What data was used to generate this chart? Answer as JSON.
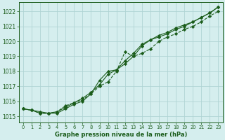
{
  "title": "Graphe pression niveau de la mer (hPa)",
  "xlim": [
    -0.5,
    23.5
  ],
  "ylim": [
    1014.6,
    1022.6
  ],
  "yticks": [
    1015,
    1016,
    1017,
    1018,
    1019,
    1020,
    1021,
    1022
  ],
  "xticks": [
    0,
    1,
    2,
    3,
    4,
    5,
    6,
    7,
    8,
    9,
    10,
    11,
    12,
    13,
    14,
    15,
    16,
    17,
    18,
    19,
    20,
    21,
    22,
    23
  ],
  "bg_color": "#d5eeee",
  "grid_color": "#b0d4d4",
  "line_color": "#1a5c1a",
  "series1": [
    1015.5,
    1015.4,
    1015.3,
    1015.2,
    1015.3,
    1015.6,
    1015.9,
    1016.2,
    1016.6,
    1017.1,
    1017.8,
    1018.1,
    1018.5,
    1019.0,
    1019.7,
    1020.1,
    1020.3,
    1020.5,
    1020.8,
    1021.0,
    1021.3,
    1021.6,
    1021.9,
    1022.3
  ],
  "series2": [
    1015.5,
    1015.4,
    1015.2,
    1015.2,
    1015.2,
    1015.5,
    1015.8,
    1016.0,
    1016.5,
    1017.4,
    1018.0,
    1018.1,
    1018.7,
    1019.2,
    1019.8,
    1020.1,
    1020.4,
    1020.6,
    1020.9,
    1021.1,
    1021.3,
    1021.6,
    1021.9,
    1022.3
  ],
  "series3": [
    1015.5,
    1015.4,
    1015.2,
    1015.2,
    1015.3,
    1015.7,
    1015.9,
    1016.1,
    1016.5,
    1017.0,
    1017.3,
    1018.0,
    1019.3,
    1019.0,
    1019.2,
    1019.5,
    1020.0,
    1020.3,
    1020.5,
    1020.8,
    1021.0,
    1021.3,
    1021.7,
    1022.0
  ]
}
